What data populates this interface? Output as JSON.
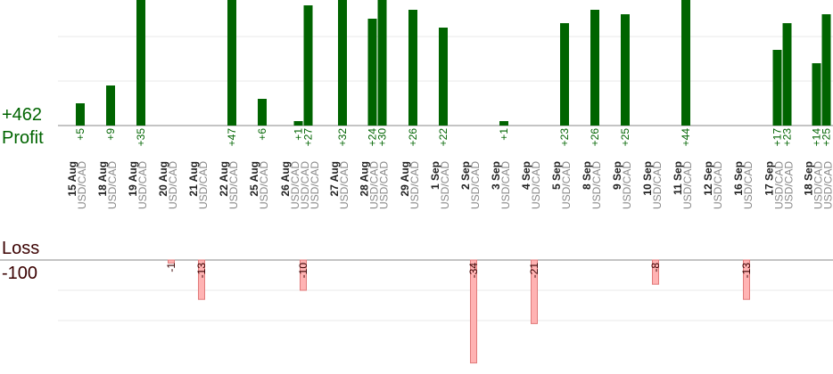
{
  "summary": {
    "profit_total": "+462",
    "profit_label": "Profit",
    "loss_label": "Loss",
    "loss_total": "-100"
  },
  "colors": {
    "profit": "#006400",
    "loss_fill": "#ffb3b3",
    "loss_stroke": "#e07a7a",
    "loss_text": "#3a0000",
    "grid": "#e8e8e8",
    "axis": "#888888",
    "date_text": "#222222",
    "pair_text": "#888888"
  },
  "chart_data": {
    "type": "bar",
    "title": "",
    "xlabel": "",
    "ylabel": "",
    "grid": true,
    "legend": "none",
    "categories": [
      "15 Aug",
      "18 Aug",
      "19 Aug",
      "20 Aug",
      "21 Aug",
      "22 Aug",
      "25 Aug",
      "26 Aug",
      "27 Aug",
      "28 Aug",
      "29 Aug",
      "1 Sep",
      "2 Sep",
      "3 Sep",
      "4 Sep",
      "5 Sep",
      "8 Sep",
      "9 Sep",
      "10 Sep",
      "11 Sep",
      "12 Sep",
      "16 Sep",
      "17 Sep",
      "18 Sep"
    ],
    "days": [
      {
        "date": "15 Aug",
        "pairs": [
          "USD/CAD"
        ]
      },
      {
        "date": "18 Aug",
        "pairs": [
          "USD/CAD"
        ]
      },
      {
        "date": "19 Aug",
        "pairs": [
          "USD/CAD"
        ]
      },
      {
        "date": "20 Aug",
        "pairs": [
          "USD/CAD"
        ]
      },
      {
        "date": "21 Aug",
        "pairs": [
          "USD/CAD"
        ]
      },
      {
        "date": "22 Aug",
        "pairs": [
          "USD/CAD"
        ]
      },
      {
        "date": "25 Aug",
        "pairs": [
          "USD/CAD"
        ]
      },
      {
        "date": "26 Aug",
        "pairs": [
          "USD/CAD",
          "USD/CAD",
          "USD/CAD"
        ]
      },
      {
        "date": "27 Aug",
        "pairs": [
          "USD/CAD"
        ]
      },
      {
        "date": "28 Aug",
        "pairs": [
          "USD/CAD",
          "USD/CAD"
        ]
      },
      {
        "date": "29 Aug",
        "pairs": [
          "USD/CAD"
        ]
      },
      {
        "date": "1 Sep",
        "pairs": [
          "USD/CAD"
        ]
      },
      {
        "date": "2 Sep",
        "pairs": [
          "USD/CAD"
        ]
      },
      {
        "date": "3 Sep",
        "pairs": [
          "USD/CAD"
        ]
      },
      {
        "date": "4 Sep",
        "pairs": [
          "USD/CAD"
        ]
      },
      {
        "date": "5 Sep",
        "pairs": [
          "USD/CAD"
        ]
      },
      {
        "date": "8 Sep",
        "pairs": [
          "USD/CAD"
        ]
      },
      {
        "date": "9 Sep",
        "pairs": [
          "USD/CAD"
        ]
      },
      {
        "date": "10 Sep",
        "pairs": [
          "USD/CAD"
        ]
      },
      {
        "date": "11 Sep",
        "pairs": [
          "USD/CAD"
        ]
      },
      {
        "date": "12 Sep",
        "pairs": [
          "USD/CAD"
        ]
      },
      {
        "date": "16 Sep",
        "pairs": [
          "USD/CAD"
        ]
      },
      {
        "date": "17 Sep",
        "pairs": [
          "USD/CAD",
          "USD/CAD"
        ]
      },
      {
        "date": "18 Sep",
        "pairs": [
          "USD/CAD",
          "USD/CAD"
        ]
      }
    ],
    "profits": [
      {
        "date": "15 Aug",
        "value": 5,
        "label": "+5"
      },
      {
        "date": "18 Aug",
        "value": 9,
        "label": "+9"
      },
      {
        "date": "19 Aug",
        "value": 35,
        "label": "+35"
      },
      {
        "date": "22 Aug",
        "value": 47,
        "label": "+47"
      },
      {
        "date": "25 Aug",
        "value": 6,
        "label": "+6"
      },
      {
        "date": "26 Aug",
        "value": 1,
        "label": "+1"
      },
      {
        "date": "26 Aug",
        "value": 27,
        "label": "+27"
      },
      {
        "date": "27 Aug",
        "value": 32,
        "label": "+32"
      },
      {
        "date": "28 Aug",
        "value": 24,
        "label": "+24"
      },
      {
        "date": "28 Aug",
        "value": 30,
        "label": "+30"
      },
      {
        "date": "29 Aug",
        "value": 26,
        "label": "+26"
      },
      {
        "date": "1 Sep",
        "value": 22,
        "label": "+22"
      },
      {
        "date": "3 Sep",
        "value": 1,
        "label": "+1"
      },
      {
        "date": "5 Sep",
        "value": 23,
        "label": "+23"
      },
      {
        "date": "8 Sep",
        "value": 26,
        "label": "+26"
      },
      {
        "date": "9 Sep",
        "value": 25,
        "label": "+25"
      },
      {
        "date": "11 Sep",
        "value": 44,
        "label": "+44"
      },
      {
        "date": "17 Sep",
        "value": 17,
        "label": "+17"
      },
      {
        "date": "17 Sep",
        "value": 23,
        "label": "+23"
      },
      {
        "date": "18 Sep",
        "value": 14,
        "label": "+14"
      },
      {
        "date": "18 Sep",
        "value": 25,
        "label": "+25"
      }
    ],
    "losses": [
      {
        "date": "20 Aug",
        "value": -1,
        "label": "-1"
      },
      {
        "date": "21 Aug",
        "value": -13,
        "label": "-13"
      },
      {
        "date": "26 Aug",
        "value": -10,
        "label": "-10"
      },
      {
        "date": "2 Sep",
        "value": -34,
        "label": "-34"
      },
      {
        "date": "4 Sep",
        "value": -21,
        "label": "-21"
      },
      {
        "date": "10 Sep",
        "value": -8,
        "label": "-8"
      },
      {
        "date": "16 Sep",
        "value": -13,
        "label": "-13"
      }
    ],
    "profit_ylim": [
      0,
      28
    ],
    "loss_ylim": [
      -34,
      0
    ],
    "profit_grid": [
      10,
      20
    ],
    "loss_grid": [
      -10,
      -20
    ]
  }
}
